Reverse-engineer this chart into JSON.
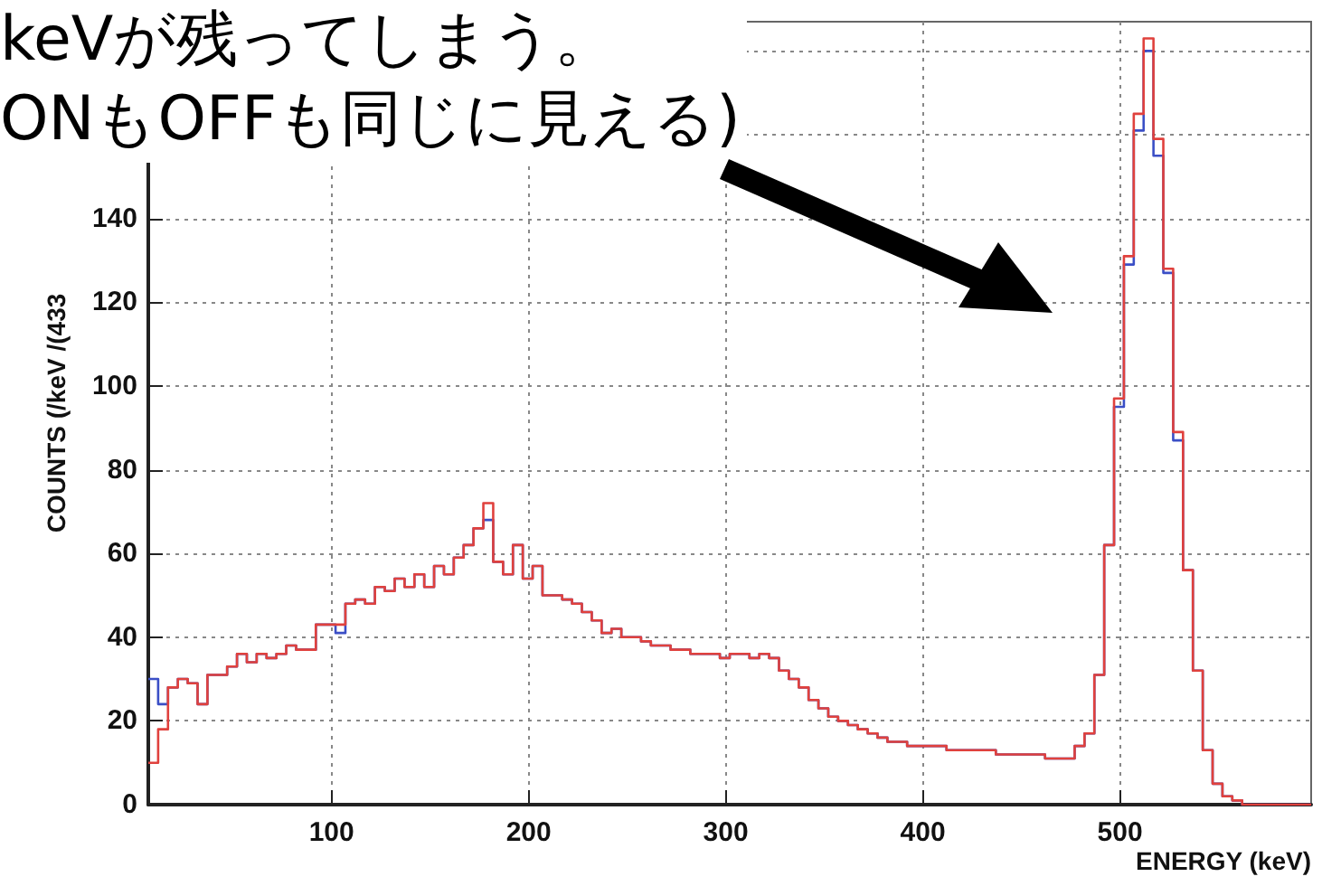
{
  "chart_data": {
    "type": "histogram",
    "annotations": [
      "keVが残ってしまう。",
      "ONもOFFも同じに見える)"
    ],
    "xlabel": "ENERGY (keV)",
    "ylabel": "COUNTS (/keV /(433",
    "bins": [
      7,
      12,
      17,
      22,
      27,
      32,
      37,
      42,
      47,
      52,
      57,
      62,
      67,
      72,
      77,
      82,
      87,
      92,
      97,
      102,
      107,
      112,
      117,
      122,
      127,
      132,
      137,
      142,
      147,
      152,
      157,
      162,
      167,
      172,
      177,
      182,
      187,
      192,
      197,
      202,
      207,
      212,
      217,
      222,
      227,
      232,
      237,
      242,
      247,
      252,
      257,
      262,
      267,
      272,
      277,
      282,
      287,
      292,
      297,
      302,
      307,
      312,
      317,
      322,
      327,
      332,
      337,
      342,
      347,
      352,
      357,
      362,
      367,
      372,
      377,
      382,
      387,
      392,
      397,
      402,
      407,
      412,
      417,
      422,
      427,
      432,
      437,
      442,
      447,
      452,
      457,
      462,
      467,
      472,
      477,
      482,
      487,
      492,
      497,
      502,
      507,
      512,
      517,
      522,
      527,
      532,
      537,
      542,
      547,
      552,
      557,
      562,
      567,
      572,
      577,
      582,
      587,
      592,
      597
    ],
    "series": [
      {
        "color": "#3b4fc6",
        "values": [
          30,
          24,
          28,
          30,
          29,
          24,
          31,
          31,
          33,
          36,
          34,
          36,
          35,
          36,
          38,
          37,
          37,
          43,
          43,
          41,
          48,
          49,
          48,
          52,
          51,
          54,
          52,
          55,
          52,
          57,
          55,
          59,
          62,
          66,
          68,
          58,
          55,
          62,
          54,
          57,
          50,
          50,
          49,
          48,
          46,
          44,
          41,
          42,
          40,
          40,
          39,
          38,
          38,
          37,
          37,
          36,
          36,
          36,
          35,
          36,
          36,
          35,
          36,
          35,
          32,
          30,
          28,
          25,
          23,
          21,
          20,
          19,
          18,
          17,
          16,
          15,
          15,
          14,
          14,
          14,
          14,
          13,
          13,
          13,
          13,
          13,
          12,
          12,
          12,
          12,
          12,
          11,
          11,
          11,
          14,
          17,
          31,
          62,
          95,
          129,
          161,
          180,
          155,
          127,
          87,
          56,
          32,
          13,
          5,
          2,
          1,
          0,
          0,
          0,
          0,
          0,
          0,
          0
        ]
      },
      {
        "color": "#e0413d",
        "values": [
          10,
          18,
          28,
          30,
          29,
          24,
          31,
          31,
          33,
          36,
          34,
          36,
          35,
          36,
          38,
          37,
          37,
          43,
          43,
          43,
          48,
          49,
          48,
          52,
          51,
          54,
          52,
          55,
          52,
          57,
          55,
          59,
          62,
          66,
          72,
          58,
          55,
          62,
          54,
          57,
          50,
          50,
          49,
          48,
          46,
          44,
          41,
          42,
          40,
          40,
          39,
          38,
          38,
          37,
          37,
          36,
          36,
          36,
          35,
          36,
          36,
          35,
          36,
          35,
          32,
          30,
          28,
          25,
          23,
          21,
          20,
          19,
          18,
          17,
          16,
          15,
          15,
          14,
          14,
          14,
          14,
          13,
          13,
          13,
          13,
          13,
          12,
          12,
          12,
          12,
          12,
          11,
          11,
          11,
          14,
          17,
          31,
          62,
          97,
          131,
          165,
          183,
          159,
          128,
          89,
          56,
          32,
          13,
          5,
          2,
          1,
          0,
          0,
          0,
          0,
          0,
          0,
          0
        ]
      }
    ],
    "xlim": [
      7,
      597
    ],
    "ylim": [
      0,
      187
    ],
    "xticks": [
      100,
      200,
      300,
      400,
      500
    ],
    "yticks": [
      0,
      20,
      40,
      60,
      80,
      100,
      120,
      140,
      {
        "value": 160,
        "label": null
      },
      {
        "value": 180,
        "label": null
      }
    ],
    "grid": true
  }
}
